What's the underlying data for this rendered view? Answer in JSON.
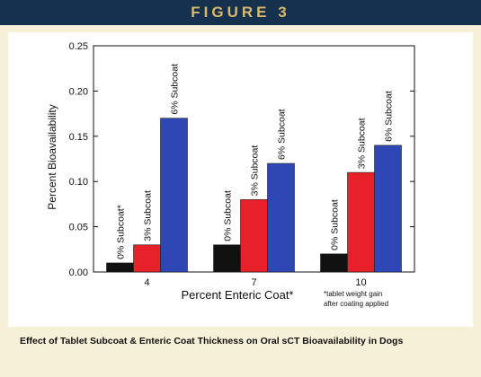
{
  "header": {
    "figure_label": "FIGURE 3"
  },
  "caption": "Effect of Tablet Subcoat & Enteric Coat Thickness on Oral sCT Bioavailability in Dogs",
  "footnote": [
    "*tablet weight gain",
    "after coating applied"
  ],
  "colors": {
    "header_bg": "#16314d",
    "header_text": "#d9b86a",
    "page_bg": "#f6f1d8",
    "plot_bg": "#ffffff"
  },
  "chart_data": {
    "type": "bar",
    "xlabel": "Percent Enteric Coat*",
    "ylabel": "Percent Bioavailability",
    "ylim": [
      0,
      0.25
    ],
    "yticks": [
      "0.00",
      "0.05",
      "0.10",
      "0.15",
      "0.20",
      "0.25"
    ],
    "categories": [
      "4",
      "7",
      "10"
    ],
    "grid": false,
    "series": [
      {
        "name": "0% Subcoat*",
        "color": "#111111",
        "values": [
          0.01,
          0.03,
          0.02
        ],
        "labels": [
          "0% Subcoat*",
          "0% Subcoat",
          "0% Subcoat"
        ]
      },
      {
        "name": "3% Subcoat",
        "color": "#e8202a",
        "values": [
          0.03,
          0.08,
          0.11
        ],
        "labels": [
          "3% Subcoat",
          "3% Subcoat",
          "3% Subcoat"
        ]
      },
      {
        "name": "6% Subcoat",
        "color": "#2f46b5",
        "values": [
          0.17,
          0.12,
          0.14
        ],
        "labels": [
          "6% Subcoat",
          "6% Subcoat",
          "6% Subcoat"
        ]
      }
    ]
  }
}
